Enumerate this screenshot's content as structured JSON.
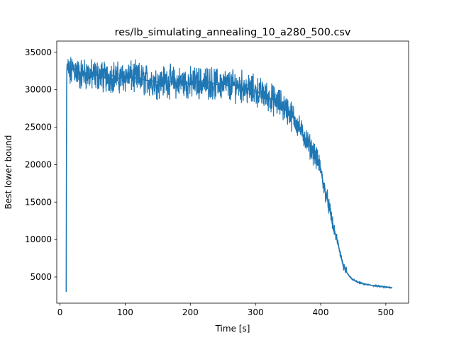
{
  "chart_data": {
    "type": "line",
    "title": "res/lb_simulating_annealing_10_a280_500.csv",
    "xlabel": "Time [s]",
    "ylabel": "Best lower bound",
    "xlim": [
      -5,
      535
    ],
    "ylim": [
      1500,
      36500
    ],
    "xticks": [
      0,
      100,
      200,
      300,
      400,
      500
    ],
    "yticks": [
      5000,
      10000,
      15000,
      20000,
      25000,
      30000,
      35000
    ],
    "grid": false,
    "series_color": "#1f77b4",
    "series": [
      {
        "x": [
          9.5,
          9.8,
          10.0,
          10.2,
          10.5,
          11,
          12,
          15,
          20,
          25,
          30,
          40,
          50,
          60,
          70,
          80,
          90,
          100,
          110,
          120,
          130,
          140,
          150,
          160,
          170,
          180,
          190,
          200,
          210,
          220,
          230,
          240,
          250,
          260,
          270,
          280,
          290,
          300,
          310,
          320,
          330,
          340,
          350,
          360,
          370,
          380,
          390,
          395,
          400,
          405,
          410,
          415,
          420,
          425,
          430,
          435,
          440,
          445,
          450,
          460,
          470,
          480,
          490,
          500,
          510
        ],
        "y": [
          3000,
          17000,
          24000,
          30000,
          32500,
          33500,
          32800,
          32000,
          33000,
          32500,
          32000,
          32200,
          31800,
          32000,
          31600,
          31900,
          31500,
          31800,
          31700,
          31500,
          31300,
          31200,
          31000,
          31200,
          31100,
          30900,
          31000,
          30800,
          31000,
          30900,
          31000,
          30700,
          30800,
          30500,
          30600,
          30400,
          30000,
          29800,
          29500,
          29000,
          28500,
          28000,
          27200,
          26000,
          24500,
          23000,
          21500,
          20500,
          19500,
          17000,
          15500,
          13500,
          11500,
          10000,
          8200,
          6400,
          5600,
          5000,
          4600,
          4200,
          4000,
          3850,
          3750,
          3650,
          3550
        ]
      }
    ]
  }
}
